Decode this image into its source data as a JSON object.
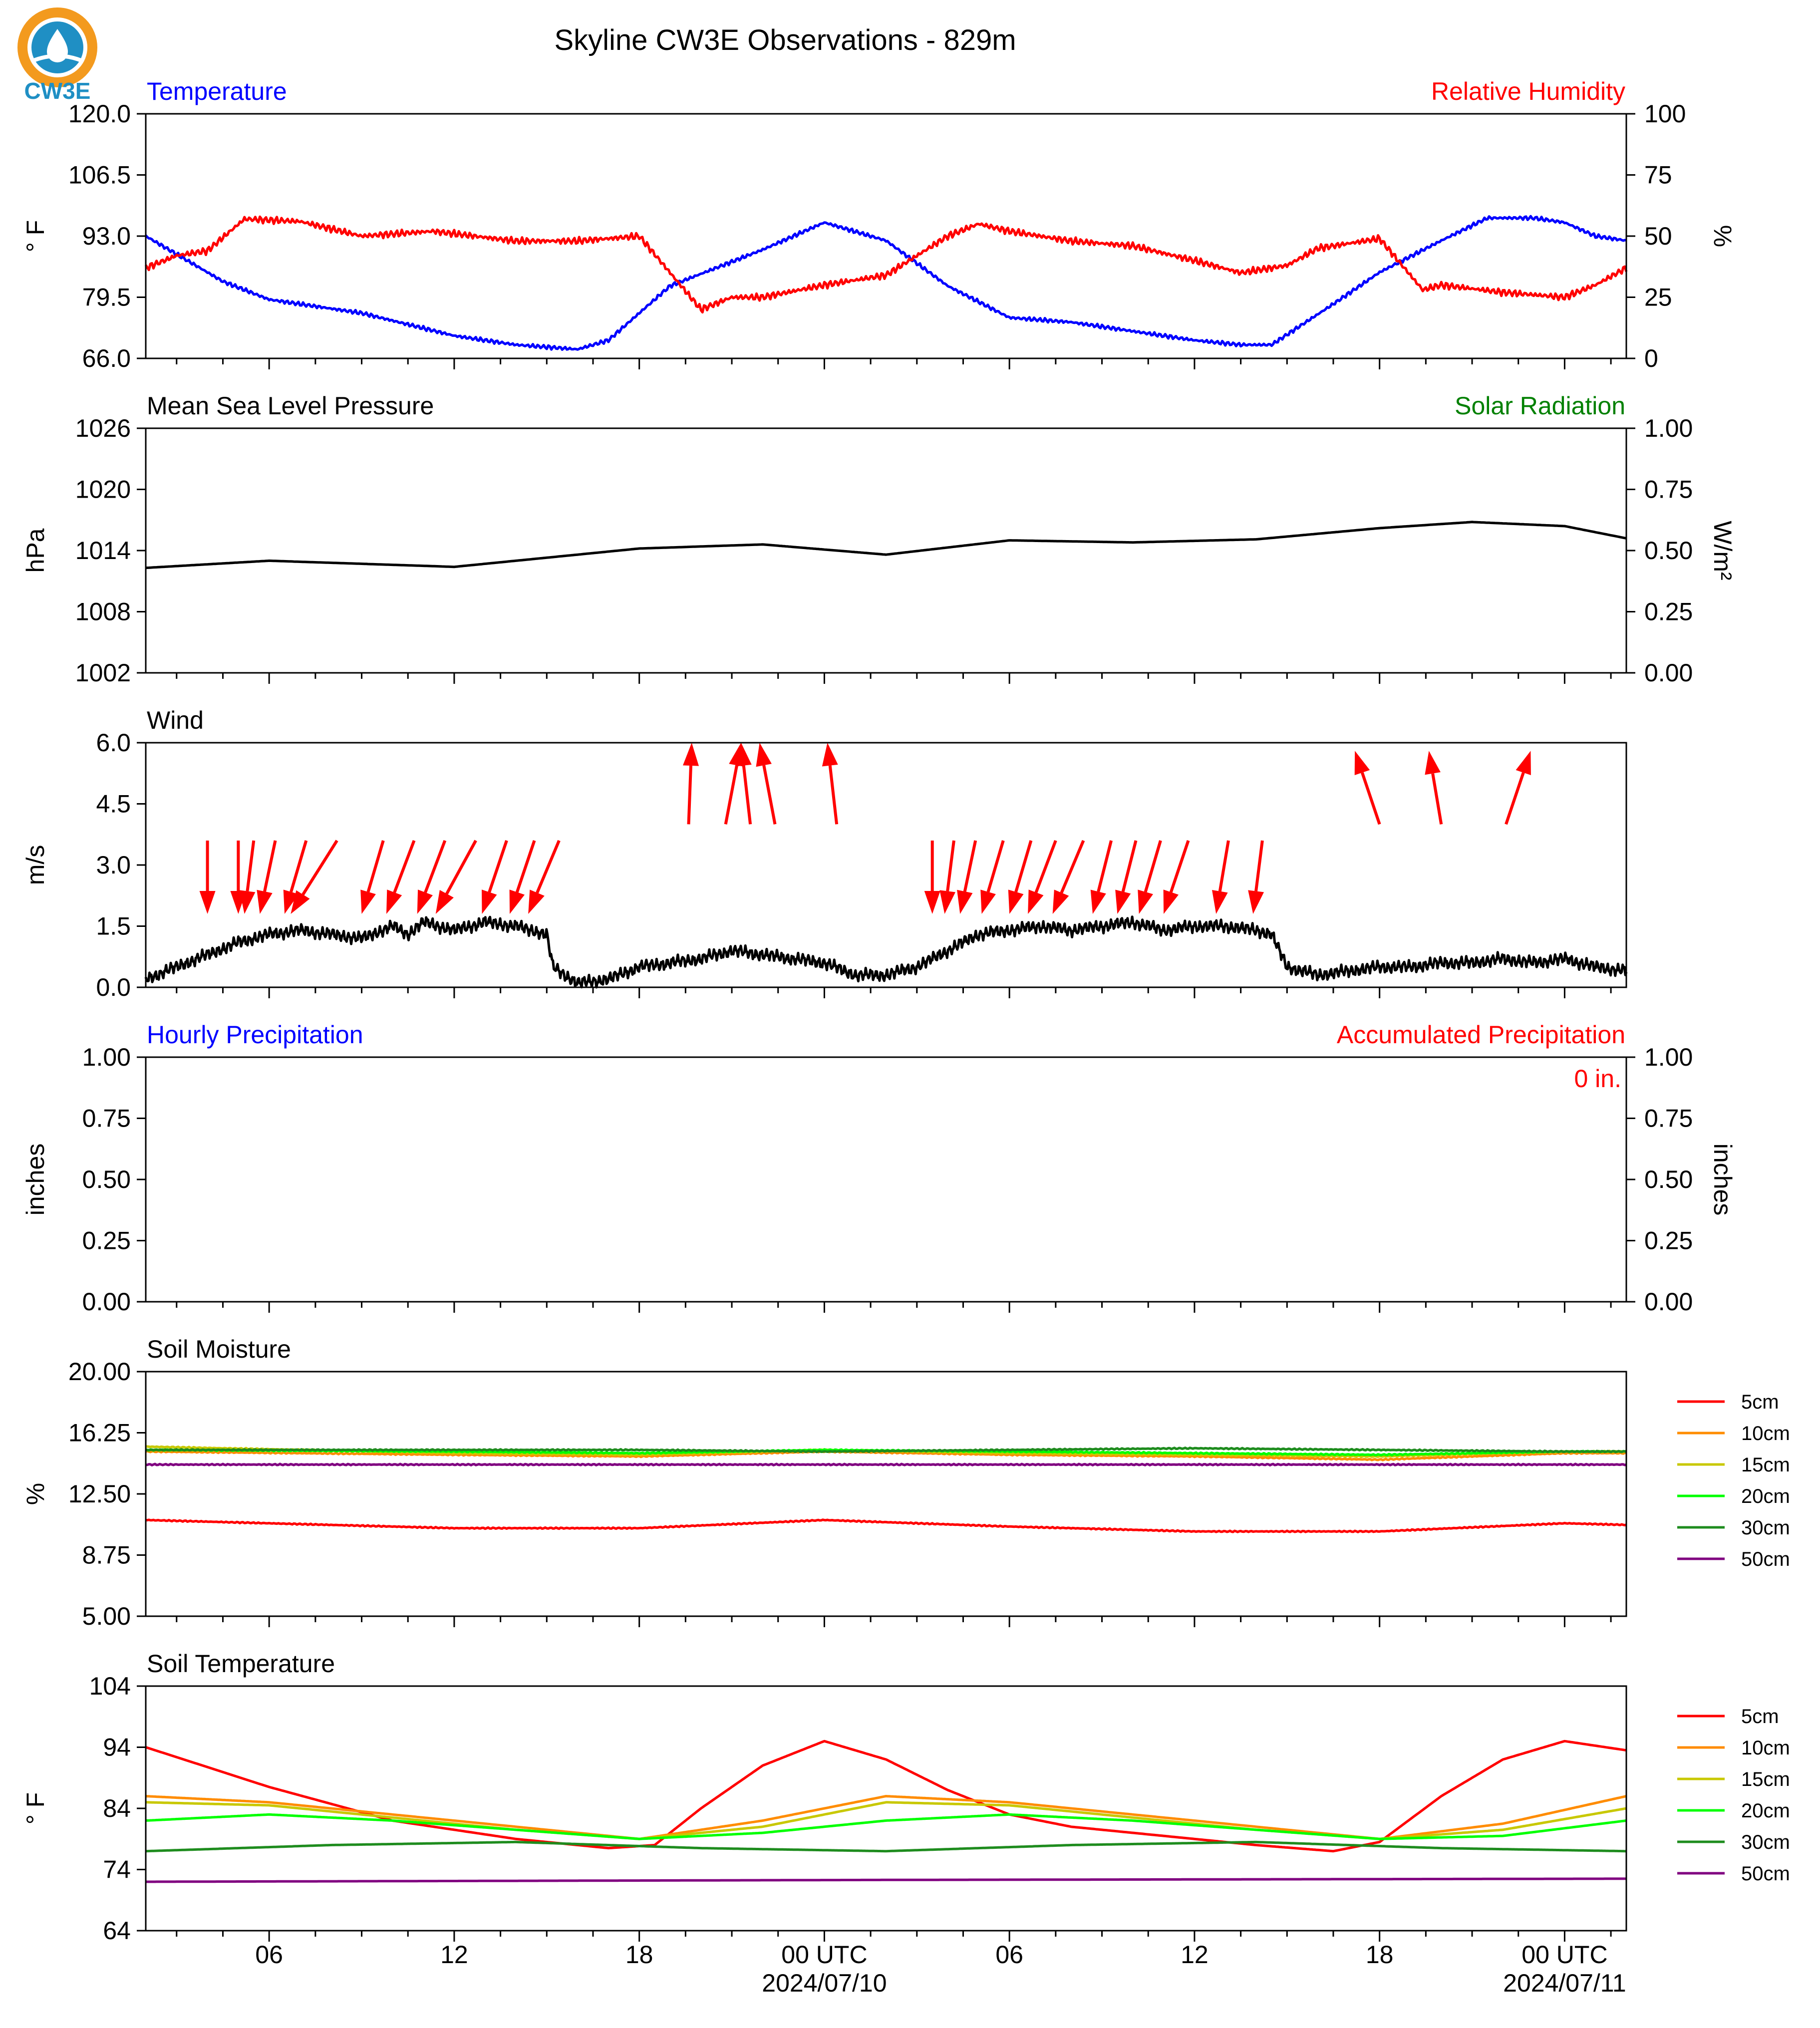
{
  "title": "Skyline CW3E Observations - 829m",
  "logo_text": "CW3E",
  "colors": {
    "blue": "#0000ff",
    "red": "#ff0000",
    "green": "#008000",
    "black": "#000000",
    "orange": "#ff8c00",
    "yellowgreen": "#c8c800",
    "lime": "#00ff00",
    "darkgreen": "#1e8c1e",
    "purple": "#800080",
    "logo_orange": "#f39a1e",
    "logo_blue": "#1f8fc4"
  },
  "x_axis": {
    "range_hours": [
      -22,
      26
    ],
    "ticks": [
      {
        "h": -18,
        "label": "06"
      },
      {
        "h": -12,
        "label": "12"
      },
      {
        "h": -6,
        "label": "18"
      },
      {
        "h": 0,
        "label": "00 UTC",
        "date": "2024/07/10"
      },
      {
        "h": 6,
        "label": "06"
      },
      {
        "h": 12,
        "label": "12"
      },
      {
        "h": 18,
        "label": "18"
      },
      {
        "h": 24,
        "label": "00 UTC",
        "date": "2024/07/11"
      }
    ]
  },
  "chart_data": [
    {
      "id": "temp-rh",
      "type": "line",
      "left_title": "Temperature",
      "right_title": "Relative Humidity",
      "ylabel_left": "° F",
      "ylabel_right": "%",
      "ylim_left": [
        66,
        120
      ],
      "ylim_right": [
        0,
        100
      ],
      "yticks_left": [
        "66.0",
        "79.5",
        "93.0",
        "106.5",
        "120.0"
      ],
      "yticks_right": [
        "0",
        "25",
        "50",
        "75",
        "100"
      ],
      "series": [
        {
          "axis": "left",
          "color": "blue",
          "x": [
            -22,
            -21,
            -19.5,
            -18,
            -15,
            -12,
            -10,
            -8,
            -7,
            -5,
            -2,
            0,
            2,
            4,
            6,
            8,
            10,
            12,
            13.5,
            14.5,
            16.5,
            18,
            20,
            21.5,
            23,
            24,
            25,
            26
          ],
          "y": [
            93,
            89,
            83,
            79,
            76,
            71,
            69,
            68,
            70,
            82,
            90,
            96,
            92,
            82,
            75,
            74,
            72,
            70,
            69,
            69,
            78,
            85,
            92,
            97,
            97,
            96,
            93,
            92
          ]
        },
        {
          "axis": "right",
          "color": "red",
          "x": [
            -22,
            -21,
            -20,
            -18.8,
            -17,
            -15,
            -12.7,
            -10,
            -8,
            -6,
            -4,
            -3,
            -2,
            0,
            2,
            3,
            4,
            5,
            6,
            8,
            10,
            12,
            13.5,
            15,
            16,
            18,
            19.4,
            20,
            22,
            24,
            25,
            26
          ],
          "y": [
            37,
            42,
            44,
            57,
            56,
            50,
            52,
            48,
            48,
            50,
            20,
            25,
            25,
            30,
            34,
            42,
            50,
            55,
            52,
            48,
            46,
            40,
            35,
            38,
            45,
            49,
            28,
            30,
            27,
            25,
            30,
            37
          ]
        }
      ]
    },
    {
      "id": "pressure",
      "type": "line",
      "left_title": "Mean Sea Level Pressure",
      "right_title": "Solar Radiation",
      "ylabel_left": "hPa",
      "ylabel_right": "W/m²",
      "ylim_left": [
        1002,
        1026
      ],
      "ylim_right": [
        0,
        1
      ],
      "yticks_left": [
        "1002",
        "1008",
        "1014",
        "1020",
        "1026"
      ],
      "yticks_right": [
        "0.00",
        "0.25",
        "0.50",
        "0.75",
        "1.00"
      ],
      "series": [
        {
          "axis": "left",
          "color": "black",
          "x": [
            -22,
            -18,
            -12,
            -6,
            -2,
            2,
            6,
            10,
            14,
            18,
            21,
            24,
            26
          ],
          "y": [
            1012.3,
            1013.0,
            1012.4,
            1014.2,
            1014.6,
            1013.6,
            1015.0,
            1014.8,
            1015.1,
            1016.2,
            1016.8,
            1016.4,
            1015.2
          ]
        }
      ]
    },
    {
      "id": "wind",
      "type": "line",
      "left_title": "Wind",
      "ylabel_left": "m/s",
      "ylim_left": [
        0,
        6
      ],
      "yticks_left": [
        "0.0",
        "1.5",
        "3.0",
        "4.5",
        "6.0"
      ],
      "series": [
        {
          "axis": "left",
          "color": "black",
          "x": [
            -22,
            -21,
            -20,
            -19,
            -18,
            -17,
            -16,
            -15,
            -14,
            -13.5,
            -13,
            -12,
            -11,
            -10,
            -9,
            -8.8,
            -8,
            -7,
            -6,
            -5,
            -4,
            -3,
            -2,
            -1,
            0,
            1,
            2,
            3,
            4,
            5,
            6,
            7,
            8,
            9,
            10,
            11,
            12,
            13,
            14,
            14.5,
            15,
            16,
            17,
            18,
            19,
            20,
            21,
            22,
            23,
            24,
            25,
            26
          ],
          "y": [
            0.2,
            0.5,
            0.8,
            1.1,
            1.3,
            1.4,
            1.3,
            1.2,
            1.5,
            1.3,
            1.6,
            1.4,
            1.6,
            1.5,
            1.3,
            0.5,
            0.1,
            0.2,
            0.5,
            0.6,
            0.7,
            0.9,
            0.8,
            0.7,
            0.6,
            0.3,
            0.3,
            0.5,
            0.9,
            1.3,
            1.4,
            1.5,
            1.4,
            1.5,
            1.6,
            1.4,
            1.5,
            1.5,
            1.4,
            1.3,
            0.5,
            0.3,
            0.4,
            0.5,
            0.5,
            0.6,
            0.6,
            0.7,
            0.6,
            0.7,
            0.5,
            0.4
          ]
        }
      ],
      "arrows": [
        {
          "x": -20,
          "y": 3.6,
          "dx": 0,
          "dy": -1.8
        },
        {
          "x": -19,
          "y": 3.6,
          "dx": 0,
          "dy": -1.8
        },
        {
          "x": -18.5,
          "y": 3.6,
          "dx": -0.3,
          "dy": -1.8
        },
        {
          "x": -17.8,
          "y": 3.6,
          "dx": -0.5,
          "dy": -1.8
        },
        {
          "x": -16.8,
          "y": 3.6,
          "dx": -0.7,
          "dy": -1.8
        },
        {
          "x": -15.8,
          "y": 3.6,
          "dx": -1.5,
          "dy": -1.8
        },
        {
          "x": -14.3,
          "y": 3.6,
          "dx": -0.7,
          "dy": -1.8
        },
        {
          "x": -13.3,
          "y": 3.6,
          "dx": -0.9,
          "dy": -1.8
        },
        {
          "x": -12.3,
          "y": 3.6,
          "dx": -0.9,
          "dy": -1.8
        },
        {
          "x": -11.3,
          "y": 3.6,
          "dx": -1.3,
          "dy": -1.8
        },
        {
          "x": -10.3,
          "y": 3.6,
          "dx": -0.8,
          "dy": -1.8
        },
        {
          "x": -9.4,
          "y": 3.6,
          "dx": -0.8,
          "dy": -1.8
        },
        {
          "x": -8.6,
          "y": 3.6,
          "dx": -1.0,
          "dy": -1.8
        },
        {
          "x": -4.4,
          "y": 4.0,
          "dx": 0.1,
          "dy": 2.0
        },
        {
          "x": -3.2,
          "y": 4.0,
          "dx": 0.5,
          "dy": 2.0
        },
        {
          "x": -2.4,
          "y": 4.0,
          "dx": -0.3,
          "dy": 2.0
        },
        {
          "x": -1.6,
          "y": 4.0,
          "dx": -0.5,
          "dy": 2.0
        },
        {
          "x": 0.4,
          "y": 4.0,
          "dx": -0.3,
          "dy": 2.0
        },
        {
          "x": 3.5,
          "y": 3.6,
          "dx": 0,
          "dy": -1.8
        },
        {
          "x": 4.2,
          "y": 3.6,
          "dx": -0.3,
          "dy": -1.8
        },
        {
          "x": 4.9,
          "y": 3.6,
          "dx": -0.5,
          "dy": -1.8
        },
        {
          "x": 5.8,
          "y": 3.6,
          "dx": -0.7,
          "dy": -1.8
        },
        {
          "x": 6.7,
          "y": 3.6,
          "dx": -0.7,
          "dy": -1.8
        },
        {
          "x": 7.5,
          "y": 3.6,
          "dx": -0.9,
          "dy": -1.8
        },
        {
          "x": 8.4,
          "y": 3.6,
          "dx": -1.0,
          "dy": -1.8
        },
        {
          "x": 9.3,
          "y": 3.6,
          "dx": -0.6,
          "dy": -1.8
        },
        {
          "x": 10.1,
          "y": 3.6,
          "dx": -0.6,
          "dy": -1.8
        },
        {
          "x": 10.9,
          "y": 3.6,
          "dx": -0.7,
          "dy": -1.8
        },
        {
          "x": 11.8,
          "y": 3.6,
          "dx": -0.8,
          "dy": -1.8
        },
        {
          "x": 13.1,
          "y": 3.6,
          "dx": -0.4,
          "dy": -1.8
        },
        {
          "x": 14.2,
          "y": 3.6,
          "dx": -0.3,
          "dy": -1.8
        },
        {
          "x": 18,
          "y": 4.0,
          "dx": -0.8,
          "dy": 1.8
        },
        {
          "x": 20,
          "y": 4.0,
          "dx": -0.4,
          "dy": 1.8
        },
        {
          "x": 22.1,
          "y": 4.0,
          "dx": 0.8,
          "dy": 1.8
        }
      ]
    },
    {
      "id": "precip",
      "type": "line",
      "left_title": "Hourly Precipitation",
      "right_title": "Accumulated Precipitation",
      "ylabel_left": "inches",
      "ylabel_right": "inches",
      "ylim_left": [
        0,
        1
      ],
      "ylim_right": [
        0,
        1
      ],
      "yticks_left": [
        "0.00",
        "0.25",
        "0.50",
        "0.75",
        "1.00"
      ],
      "yticks_right": [
        "0.00",
        "0.25",
        "0.50",
        "0.75",
        "1.00"
      ],
      "annotation": "0 in.",
      "series": [
        {
          "axis": "left",
          "color": "blue",
          "x": [
            -22,
            26
          ],
          "y": [
            0,
            0
          ]
        },
        {
          "axis": "right",
          "color": "red",
          "x": [
            -22,
            26
          ],
          "y": [
            0,
            0
          ]
        }
      ]
    },
    {
      "id": "soil-moisture",
      "type": "line",
      "left_title": "Soil Moisture",
      "ylabel_left": "%",
      "ylim_left": [
        5,
        20
      ],
      "yticks_left": [
        "5.00",
        "8.75",
        "12.50",
        "16.25",
        "20.00"
      ],
      "legend": [
        "5cm",
        "10cm",
        "15cm",
        "20cm",
        "30cm",
        "50cm"
      ],
      "series": [
        {
          "name": "5cm",
          "color": "red",
          "x": [
            -22,
            -18,
            -12,
            -6,
            0,
            6,
            12,
            18,
            24,
            26
          ],
          "y": [
            10.9,
            10.7,
            10.4,
            10.4,
            10.9,
            10.5,
            10.2,
            10.2,
            10.7,
            10.6
          ]
        },
        {
          "name": "10cm",
          "color": "orange",
          "x": [
            -22,
            -12,
            -6,
            0,
            6,
            12,
            18,
            24,
            26
          ],
          "y": [
            15.1,
            14.9,
            14.8,
            15.1,
            14.9,
            14.8,
            14.6,
            15.0,
            15.0
          ]
        },
        {
          "name": "15cm",
          "color": "yellowgreen",
          "x": [
            -22,
            -12,
            -6,
            0,
            6,
            12,
            18,
            24,
            26
          ],
          "y": [
            15.4,
            15.0,
            14.9,
            15.2,
            15.0,
            14.9,
            14.8,
            15.1,
            15.1
          ]
        },
        {
          "name": "20cm",
          "color": "lime",
          "x": [
            -22,
            -12,
            -6,
            0,
            6,
            12,
            18,
            24,
            26
          ],
          "y": [
            15.2,
            15.1,
            15.0,
            15.2,
            15.1,
            15.0,
            14.9,
            15.1,
            15.1
          ]
        },
        {
          "name": "30cm",
          "color": "darkgreen",
          "x": [
            -22,
            -12,
            -6,
            0,
            6,
            12,
            18,
            24,
            26
          ],
          "y": [
            15.2,
            15.2,
            15.2,
            15.1,
            15.2,
            15.3,
            15.2,
            15.1,
            15.1
          ]
        },
        {
          "name": "50cm",
          "color": "purple",
          "x": [
            -22,
            -12,
            0,
            12,
            26
          ],
          "y": [
            14.3,
            14.3,
            14.3,
            14.3,
            14.3
          ]
        }
      ]
    },
    {
      "id": "soil-temp",
      "type": "line",
      "left_title": "Soil Temperature",
      "ylabel_left": "° F",
      "ylim_left": [
        64,
        104
      ],
      "yticks_left": [
        "64",
        "74",
        "84",
        "94",
        "104"
      ],
      "legend": [
        "5cm",
        "10cm",
        "15cm",
        "20cm",
        "30cm",
        "50cm"
      ],
      "series": [
        {
          "name": "5cm",
          "color": "red",
          "x": [
            -22,
            -18,
            -14,
            -10,
            -7,
            -5.5,
            -4,
            -2,
            0,
            2,
            4,
            6,
            8,
            10,
            12,
            14,
            16.5,
            18,
            20,
            22,
            24,
            26
          ],
          "y": [
            94,
            87.5,
            82,
            79,
            77.5,
            78,
            84,
            91,
            95,
            92,
            87,
            83,
            81,
            80,
            79,
            78,
            77,
            78.5,
            86,
            92,
            95,
            93.5
          ]
        },
        {
          "name": "10cm",
          "color": "orange",
          "x": [
            -22,
            -18,
            -14,
            -10,
            -6,
            -2,
            2,
            6,
            10,
            14,
            18,
            22,
            26
          ],
          "y": [
            86,
            85,
            83,
            81,
            79,
            82,
            86,
            85,
            83,
            81,
            79,
            81.5,
            86
          ]
        },
        {
          "name": "15cm",
          "color": "yellowgreen",
          "x": [
            -22,
            -18,
            -14,
            -10,
            -6,
            -2,
            2,
            6,
            10,
            14,
            18,
            22,
            26
          ],
          "y": [
            85,
            84.5,
            82.5,
            80.5,
            79,
            81,
            85,
            84.5,
            82.5,
            80.5,
            79,
            80.5,
            84
          ]
        },
        {
          "name": "20cm",
          "color": "lime",
          "x": [
            -22,
            -18,
            -14,
            -10,
            -6,
            -2,
            2,
            6,
            10,
            14,
            18,
            22,
            26
          ],
          "y": [
            82,
            83,
            82,
            80.5,
            79,
            80,
            82,
            83,
            82,
            80.5,
            79,
            79.5,
            82
          ]
        },
        {
          "name": "30cm",
          "color": "darkgreen",
          "x": [
            -22,
            -16,
            -10,
            -4,
            2,
            8,
            14,
            20,
            26
          ],
          "y": [
            77,
            78,
            78.5,
            77.5,
            77,
            78,
            78.5,
            77.5,
            77
          ]
        },
        {
          "name": "50cm",
          "color": "purple",
          "x": [
            -22,
            2,
            26
          ],
          "y": [
            72,
            72.3,
            72.5
          ]
        }
      ]
    }
  ]
}
